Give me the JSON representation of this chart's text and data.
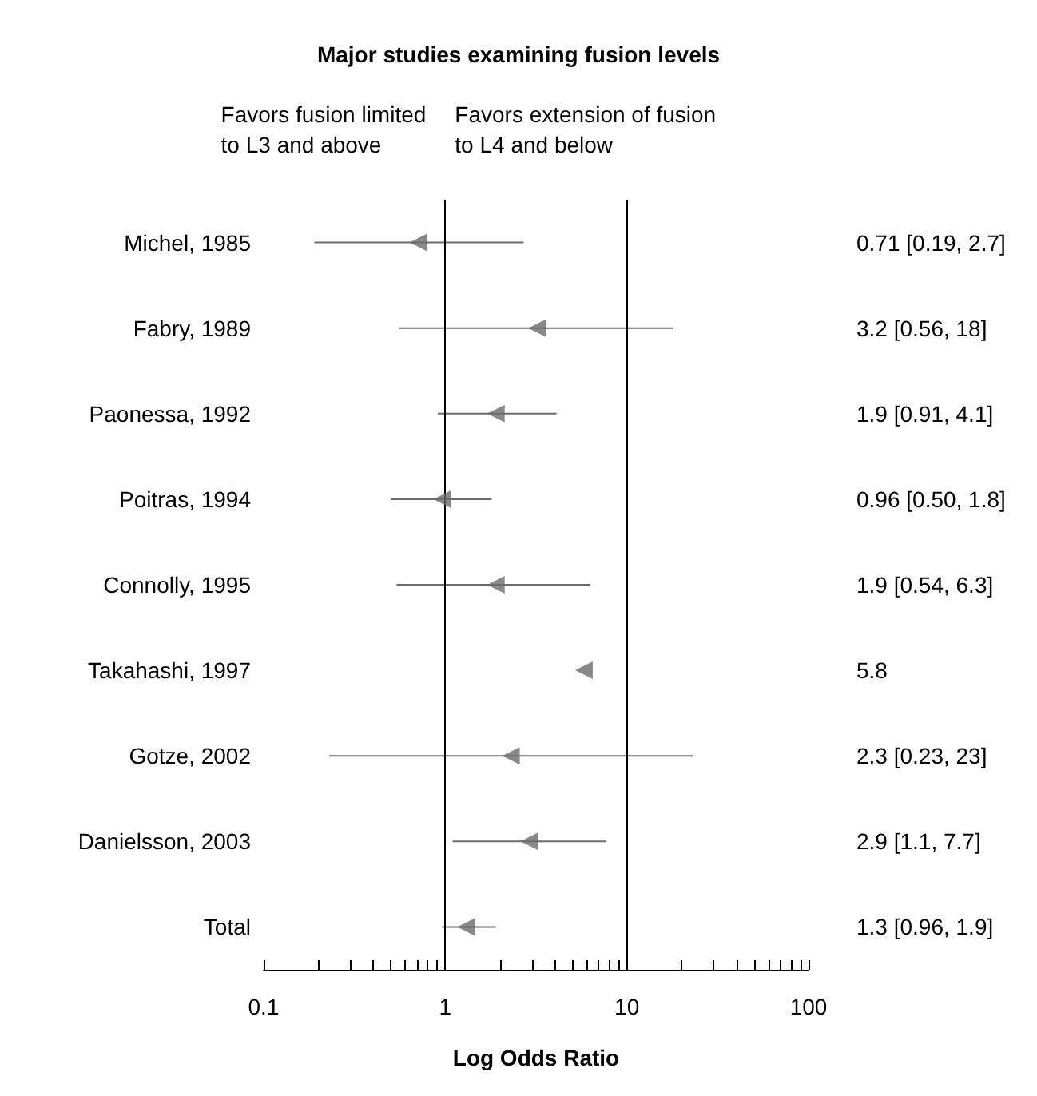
{
  "chart_data": {
    "type": "scatter",
    "title": "Major studies examining fusion levels",
    "xlabel": "Log Odds Ratio",
    "orientation": "horizontal",
    "log": "x",
    "marker": "triangle",
    "color": "#6b6b6b",
    "grid": false,
    "categories": [
      "Michel, 1985",
      "Fabry, 1989",
      "Paonessa, 1992",
      "Poitras, 1994",
      "Connolly, 1995",
      "Takahashi, 1997",
      "Gotze, 2002",
      "Danielsson, 2003",
      "Total"
    ],
    "values": [
      0.71,
      3.2,
      1.9,
      0.96,
      1.9,
      5.8,
      2.3,
      2.9,
      1.3
    ],
    "errors": [
      [
        0.19,
        2.7
      ],
      [
        0.56,
        18
      ],
      [
        0.91,
        4.1
      ],
      [
        0.5,
        1.8
      ],
      [
        0.54,
        6.3
      ],
      null,
      [
        0.23,
        23
      ],
      [
        1.1,
        7.7
      ],
      [
        0.96,
        1.9
      ]
    ],
    "xlim": [
      0.1,
      100
    ],
    "xticks": [
      0.1,
      {
        "value": 0.2,
        "label": null
      },
      {
        "value": 0.3,
        "label": null
      },
      {
        "value": 0.4,
        "label": null
      },
      {
        "value": 0.5,
        "label": null
      },
      {
        "value": 0.6,
        "label": null
      },
      {
        "value": 0.7,
        "label": null
      },
      {
        "value": 0.8,
        "label": null
      },
      {
        "value": 0.9,
        "label": null
      },
      1,
      {
        "value": 2,
        "label": null
      },
      {
        "value": 3,
        "label": null
      },
      {
        "value": 4,
        "label": null
      },
      {
        "value": 5,
        "label": null
      },
      {
        "value": 6,
        "label": null
      },
      {
        "value": 7,
        "label": null
      },
      {
        "value": 8,
        "label": null
      },
      {
        "value": 9,
        "label": null
      },
      10,
      {
        "value": 20,
        "label": null
      },
      {
        "value": 30,
        "label": null
      },
      {
        "value": 40,
        "label": null
      },
      {
        "value": 50,
        "label": null
      },
      {
        "value": 60,
        "label": null
      },
      {
        "value": 70,
        "label": null
      },
      {
        "value": 80,
        "label": null
      },
      {
        "value": 90,
        "label": null
      },
      100
    ],
    "ref_lines": [
      {
        "axis": "x",
        "value": 1,
        "color": "#000000"
      },
      {
        "axis": "x",
        "value": 10,
        "color": "#000000"
      }
    ],
    "annotations": [
      "Favors fusion limited\nto L3 and above",
      "Favors extension of fusion\nto L4 and below",
      "0.71 [0.19, 2.7]",
      "3.2 [0.56, 18]",
      "1.9 [0.91, 4.1]",
      "0.96 [0.50, 1.8]",
      "1.9 [0.54, 6.3]",
      "5.8",
      "2.3 [0.23, 23]",
      "2.9 [1.1, 7.7]",
      "1.3 [0.96, 1.9]"
    ]
  }
}
